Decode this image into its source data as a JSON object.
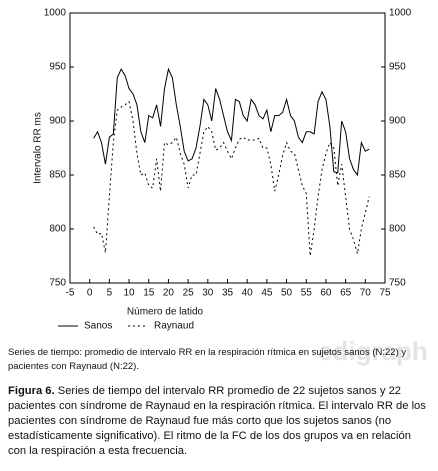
{
  "chart_data": {
    "type": "line",
    "xlabel": "Número de latido",
    "ylabel": "Intervalo RR ms",
    "x": [
      1,
      2,
      3,
      4,
      5,
      6,
      7,
      8,
      9,
      10,
      11,
      12,
      13,
      14,
      15,
      16,
      17,
      18,
      19,
      20,
      21,
      22,
      23,
      24,
      25,
      26,
      27,
      28,
      29,
      30,
      31,
      32,
      33,
      34,
      35,
      36,
      37,
      38,
      39,
      40,
      41,
      42,
      43,
      44,
      45,
      46,
      47,
      48,
      49,
      50,
      51,
      52,
      53,
      54,
      55,
      56,
      57,
      58,
      59,
      60,
      61,
      62,
      63,
      64,
      65,
      66,
      67,
      68,
      69,
      70,
      71
    ],
    "series": [
      {
        "name": "Sanos",
        "color": "#000000",
        "dash": "solid",
        "values": [
          884,
          890,
          880,
          860,
          885,
          888,
          940,
          948,
          942,
          930,
          925,
          915,
          890,
          880,
          905,
          903,
          915,
          895,
          930,
          948,
          940,
          915,
          895,
          872,
          863,
          865,
          875,
          895,
          920,
          915,
          900,
          930,
          920,
          905,
          890,
          882,
          920,
          918,
          905,
          900,
          920,
          915,
          905,
          902,
          910,
          890,
          905,
          905,
          908,
          920,
          905,
          900,
          885,
          880,
          890,
          890,
          888,
          918,
          927,
          920,
          895,
          853,
          852,
          900,
          890,
          865,
          855,
          850,
          880,
          872,
          874
        ]
      },
      {
        "name": "Raynaud",
        "color": "#000000",
        "dash": "dotted",
        "values": [
          802,
          795,
          796,
          778,
          830,
          880,
          910,
          913,
          915,
          918,
          900,
          870,
          850,
          852,
          840,
          838,
          865,
          835,
          880,
          878,
          880,
          885,
          870,
          860,
          838,
          850,
          850,
          870,
          890,
          895,
          890,
          873,
          875,
          880,
          872,
          865,
          875,
          883,
          885,
          882,
          883,
          882,
          884,
          875,
          875,
          860,
          835,
          850,
          868,
          880,
          872,
          870,
          855,
          840,
          833,
          775,
          800,
          830,
          855,
          870,
          880,
          875,
          840,
          860,
          830,
          800,
          790,
          777,
          800,
          815,
          830
        ]
      }
    ],
    "xlim": [
      -5,
      75
    ],
    "xticks": [
      -5,
      0,
      5,
      10,
      15,
      20,
      25,
      30,
      35,
      40,
      45,
      50,
      55,
      60,
      65,
      70,
      75
    ],
    "ylim": [
      750,
      1000
    ],
    "yticks": [
      750,
      800,
      850,
      900,
      950,
      1000
    ],
    "y2lim": [
      750,
      1000
    ],
    "y2ticks": [
      750,
      800,
      850,
      900,
      950,
      1000
    ],
    "grid": false,
    "legend": "below"
  },
  "note": "Series de tiempo: promedio de intervalo RR en la respiración rítmica en sujetos sanos (N:22) y pacientes con Raynaud (N:22).",
  "figure_label": "Figura 6.",
  "figure_text": "Series de tiempo del intervalo RR promedio de 22 sujetos sanos y 22 pacientes con síndrome de Raynaud en la respiración rítmica. El intervalo RR de los pacientes con síndrome de Raynaud fue más corto que los sujetos sanos (no estadísticamente significativo). El ritmo de la FC de los dos grupos va en relación con la respiración a esta frecuencia.",
  "watermark": "edigraph"
}
